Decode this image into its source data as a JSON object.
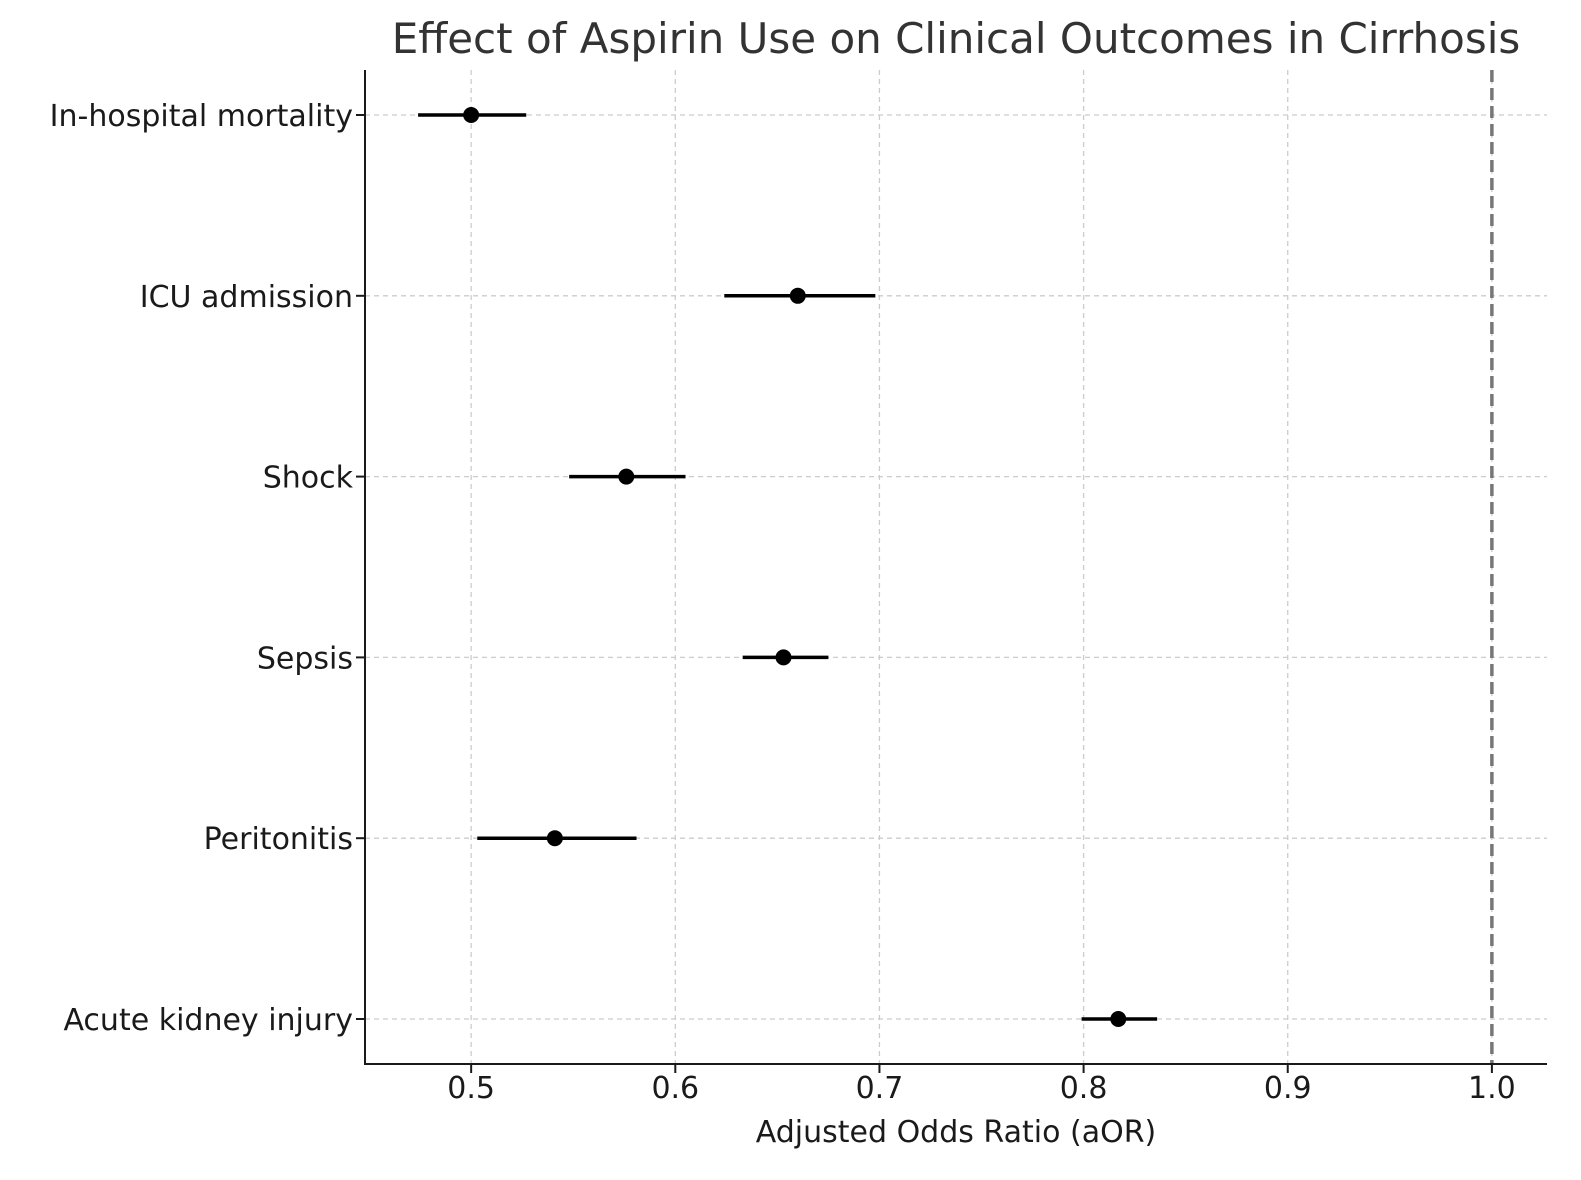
{
  "chart_data": {
    "type": "forest",
    "title": "Effect of Aspirin Use on Clinical Outcomes in Cirrhosis",
    "xlabel": "Adjusted Odds Ratio (aOR)",
    "ylabel": "",
    "xlim": [
      0.448,
      1.027
    ],
    "xticks": [
      0.5,
      0.6,
      0.7,
      0.8,
      0.9,
      1.0
    ],
    "xtick_labels": [
      "0.5",
      "0.6",
      "0.7",
      "0.8",
      "0.9",
      "1.0"
    ],
    "reference_line": 1.0,
    "grid": true,
    "categories": [
      "In-hospital mortality",
      "ICU admission",
      "Shock",
      "Sepsis",
      "Peritonitis",
      "Acute kidney injury"
    ],
    "values": [
      0.5,
      0.66,
      0.576,
      0.653,
      0.541,
      0.817
    ],
    "ci_lower": [
      0.474,
      0.624,
      0.548,
      0.633,
      0.503,
      0.799
    ],
    "ci_upper": [
      0.527,
      0.698,
      0.605,
      0.675,
      0.581,
      0.836
    ],
    "colors": {
      "marker": "#000000",
      "reference": "#777777",
      "grid": "#cccccc",
      "axis": "#1a1a1a",
      "title": "#333333"
    }
  }
}
